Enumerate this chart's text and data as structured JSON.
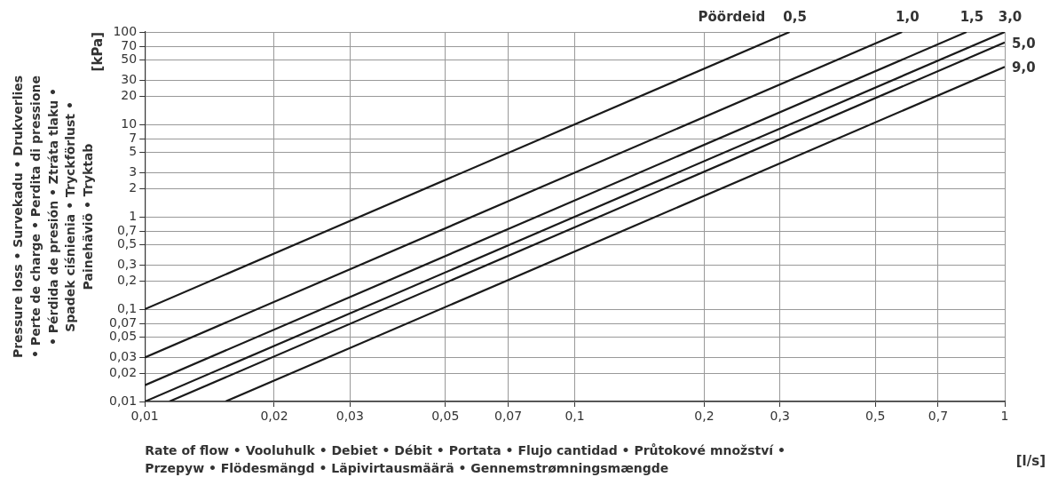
{
  "chart_data": {
    "type": "line",
    "xlabel": "Rate of flow • Vooluhulk • Debiet • Débit • Portata • Flujo cantidad • Průtokové množství • Przepyw • Flödesmängd • Läpivirtausmäärä • Gennemstrømningsmængde",
    "ylabel": "Pressure loss • Survekadu • Drukverlies • Perte de charge • Perdita di pressione • Pérdida de presión • Ztráta tlaku • Spadek ciśnienia • Tryckförlust • Painehäviö • Tryktab",
    "legend_title": "Pöördeid",
    "annotations": [
      "[kPa]",
      "[l/s]"
    ],
    "log": "xy",
    "grid": true,
    "marker": "none",
    "line_style": "solid",
    "xlim": [
      0.01,
      1
    ],
    "ylim": [
      0.01,
      100
    ],
    "xticks": [
      {
        "value": 0.01,
        "label": "0,01"
      },
      {
        "value": 0.02,
        "label": "0,02"
      },
      {
        "value": 0.03,
        "label": "0,03"
      },
      {
        "value": 0.05,
        "label": "0,05"
      },
      {
        "value": 0.07,
        "label": "0,07"
      },
      {
        "value": 0.1,
        "label": "0,1"
      },
      {
        "value": 0.2,
        "label": "0,2"
      },
      {
        "value": 0.3,
        "label": "0,3"
      },
      {
        "value": 0.5,
        "label": "0,5"
      },
      {
        "value": 0.7,
        "label": "0,7"
      },
      1
    ],
    "yticks": [
      {
        "value": 0.01,
        "label": "0,01"
      },
      {
        "value": 0.02,
        "label": "0,02"
      },
      {
        "value": 0.03,
        "label": "0,03"
      },
      {
        "value": 0.05,
        "label": "0,05"
      },
      {
        "value": 0.07,
        "label": "0,07"
      },
      {
        "value": 0.1,
        "label": "0,1"
      },
      {
        "value": 0.2,
        "label": "0,2"
      },
      {
        "value": 0.3,
        "label": "0,3"
      },
      {
        "value": 0.5,
        "label": "0,5"
      },
      {
        "value": 0.7,
        "label": "0,7"
      },
      1,
      2,
      3,
      5,
      7,
      10,
      20,
      30,
      50,
      70,
      100
    ],
    "series": [
      {
        "name": "0,5",
        "color": "#1a1a1a",
        "x": [
          0.01,
          0.316
        ],
        "values": [
          0.1,
          100
        ]
      },
      {
        "name": "1,0",
        "color": "#1a1a1a",
        "x": [
          0.01,
          0.577
        ],
        "values": [
          0.03,
          100
        ]
      },
      {
        "name": "1,5",
        "color": "#1a1a1a",
        "x": [
          0.01,
          0.815
        ],
        "values": [
          0.015,
          100
        ]
      },
      {
        "name": "3,0",
        "color": "#1a1a1a",
        "x": [
          0.01,
          1
        ],
        "values": [
          0.01,
          100
        ]
      },
      {
        "name": "5,0",
        "color": "#1a1a1a",
        "x": [
          0.0114,
          1
        ],
        "values": [
          0.01,
          77
        ]
      },
      {
        "name": "9,0",
        "color": "#1a1a1a",
        "x": [
          0.0154,
          1
        ],
        "values": [
          0.01,
          42
        ]
      }
    ]
  }
}
